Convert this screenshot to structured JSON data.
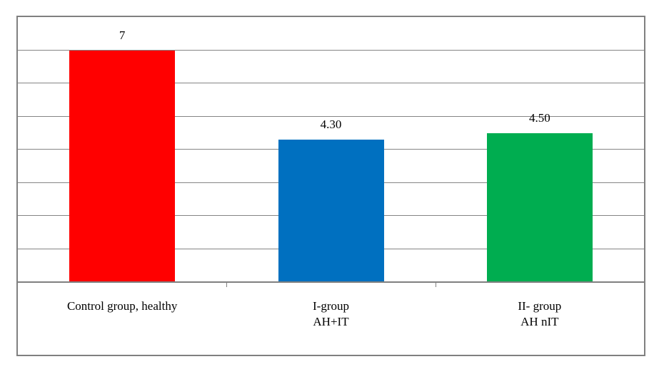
{
  "chart_data": {
    "type": "bar",
    "categories": [
      {
        "lines": [
          "Control group, healthy"
        ]
      },
      {
        "lines": [
          "I-group",
          "AH+IT"
        ]
      },
      {
        "lines": [
          "II- group",
          "AH nIT"
        ]
      }
    ],
    "values": [
      7,
      4.3,
      4.5
    ],
    "value_labels": [
      "7",
      "4.30",
      "4.50"
    ],
    "bar_colors": [
      "#ff0000",
      "#0070c0",
      "#00ad50"
    ],
    "title": "",
    "xlabel": "",
    "ylabel": "",
    "ylim": [
      0,
      8
    ],
    "gridline_step": 1,
    "grid": true,
    "legend_position": "none"
  },
  "colors": {
    "background": "#ffffff",
    "frame_border": "#808080",
    "gridline": "#858585",
    "axis_line": "#808080",
    "label_text": "#000000"
  }
}
